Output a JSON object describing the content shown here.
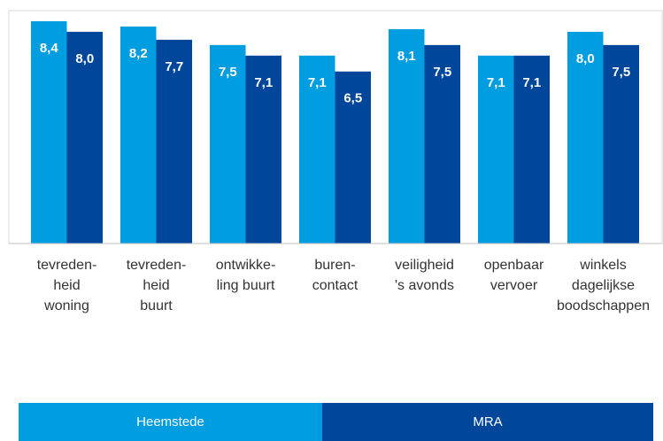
{
  "chart_data": {
    "type": "bar",
    "categories": [
      [
        "tevreden-",
        "heid",
        "woning"
      ],
      [
        "tevreden-",
        "heid",
        "buurt"
      ],
      [
        "ontwikke-",
        "ling buurt"
      ],
      [
        "buren-",
        "contact"
      ],
      [
        "veiligheid",
        "'s avonds"
      ],
      [
        "openbaar",
        "vervoer"
      ],
      [
        "winkels",
        "dagelijkse",
        "boodschappen"
      ]
    ],
    "series": [
      {
        "name": "Heemstede",
        "color": "#009de0",
        "values": [
          8.4,
          8.2,
          7.5,
          7.1,
          8.1,
          7.1,
          8.0
        ],
        "value_labels": [
          "8,4",
          "8,2",
          "7,5",
          "7,1",
          "8,1",
          "7,1",
          "8,0"
        ]
      },
      {
        "name": "MRA",
        "color": "#00479b",
        "values": [
          8.0,
          7.7,
          7.1,
          6.5,
          7.5,
          7.1,
          7.5
        ],
        "value_labels": [
          "8,0",
          "7,7",
          "7,1",
          "6,5",
          "7,5",
          "7,1",
          "7,5"
        ]
      }
    ],
    "ylim": [
      0,
      8.8
    ],
    "legend": "bottom"
  }
}
